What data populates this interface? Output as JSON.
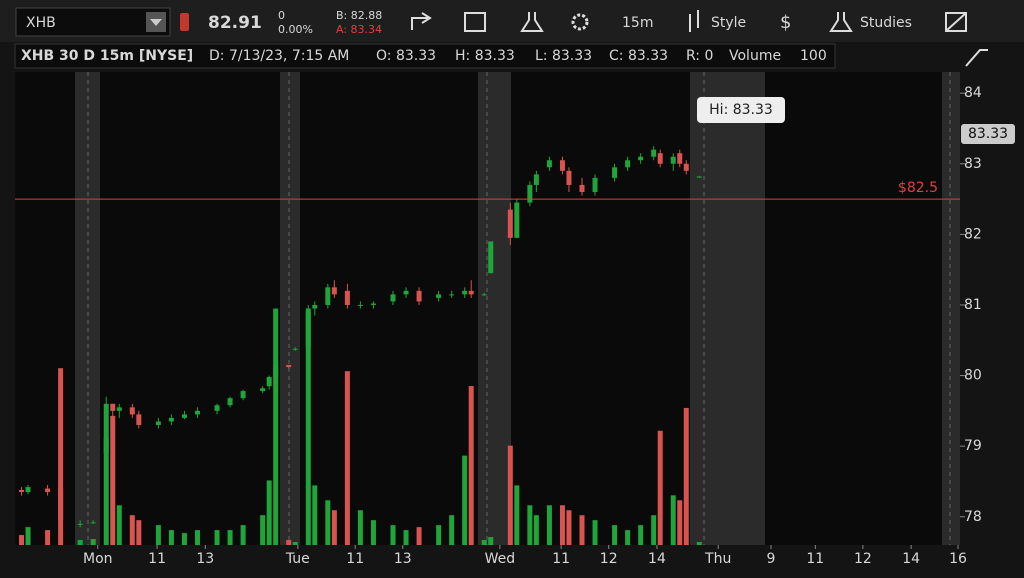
{
  "toolbar": {
    "symbol": "XHB",
    "last": "82.91",
    "change": "0",
    "change_pct": "0.00%",
    "bid": "B: 82.88",
    "ask": "A: 83.34",
    "interval": "15m",
    "style": "Style",
    "studies": "Studies"
  },
  "info_bar": {
    "title": "XHB 30 D 15m [NYSE]",
    "date": "D: 7/13/23, 7:15 AM",
    "open": "O: 83.33",
    "high": "H: 83.33",
    "low": "L: 83.33",
    "close": "C: 83.33",
    "range": "R: 0",
    "volume_label": "Volume",
    "volume": "100"
  },
  "chart_data": {
    "type": "candlestick",
    "x": [
      1,
      2,
      5,
      7,
      10,
      12,
      14,
      15,
      16,
      18,
      19,
      22,
      24,
      26,
      28,
      31,
      33,
      35,
      38,
      39,
      40,
      42,
      43,
      45,
      46,
      48,
      49,
      51,
      53,
      55,
      58,
      60,
      62,
      65,
      67,
      69,
      70,
      72,
      73,
      76,
      77,
      79,
      80,
      82,
      84,
      85,
      87,
      89,
      92,
      94,
      96,
      98,
      99,
      101,
      102,
      103,
      105
    ],
    "open": [
      78.38,
      78.35,
      78.4,
      78.4,
      77.9,
      77.92,
      78.9,
      79.6,
      79.5,
      79.55,
      79.45,
      79.3,
      79.35,
      79.4,
      79.45,
      79.5,
      79.58,
      79.68,
      79.78,
      79.85,
      79.98,
      80.15,
      80.38,
      80.4,
      80.95,
      81.0,
      81.25,
      81.2,
      81.0,
      81.0,
      81.05,
      81.15,
      81.2,
      81.1,
      81.15,
      81.15,
      81.2,
      81.15,
      81.45,
      82.35,
      81.95,
      82.45,
      82.7,
      82.95,
      83.05,
      82.9,
      82.7,
      82.6,
      82.8,
      82.95,
      83.05,
      83.1,
      83.15,
      83.0,
      83.15,
      83.0,
      82.82
    ],
    "high": [
      78.42,
      78.45,
      78.45,
      78.45,
      77.95,
      77.95,
      79.7,
      79.6,
      79.6,
      79.6,
      79.5,
      79.4,
      79.45,
      79.5,
      79.55,
      79.6,
      79.7,
      79.8,
      79.85,
      80.0,
      80.95,
      80.15,
      80.4,
      81.0,
      81.05,
      81.3,
      81.35,
      81.3,
      81.05,
      81.05,
      81.2,
      81.25,
      81.25,
      81.2,
      81.2,
      81.25,
      81.35,
      81.17,
      81.9,
      82.45,
      82.5,
      82.75,
      82.9,
      83.1,
      83.1,
      82.95,
      82.8,
      82.85,
      83.0,
      83.1,
      83.15,
      83.25,
      83.2,
      83.15,
      83.2,
      83.05,
      82.83
    ],
    "low": [
      78.3,
      78.32,
      78.3,
      77.9,
      77.85,
      77.9,
      78.9,
      79.4,
      79.4,
      79.4,
      79.25,
      79.25,
      79.3,
      79.38,
      79.4,
      79.45,
      79.55,
      79.65,
      79.75,
      79.8,
      79.95,
      80.1,
      80.35,
      80.35,
      80.85,
      80.95,
      81.1,
      80.95,
      80.95,
      80.95,
      81.0,
      81.1,
      81.0,
      81.05,
      81.1,
      81.1,
      81.1,
      81.13,
      81.45,
      81.85,
      81.95,
      82.4,
      82.6,
      82.9,
      82.85,
      82.6,
      82.55,
      82.55,
      82.75,
      82.9,
      83.0,
      83.05,
      82.95,
      82.9,
      82.95,
      82.85,
      82.8
    ],
    "close": [
      78.35,
      78.42,
      78.35,
      77.95,
      77.9,
      77.92,
      79.6,
      79.5,
      79.55,
      79.45,
      79.3,
      79.35,
      79.4,
      79.45,
      79.5,
      79.58,
      79.68,
      79.78,
      79.82,
      79.98,
      80.12,
      80.12,
      80.38,
      80.95,
      81.0,
      81.25,
      81.15,
      81.0,
      81.0,
      81.02,
      81.15,
      81.2,
      81.05,
      81.15,
      81.15,
      81.2,
      81.15,
      81.15,
      81.9,
      81.95,
      82.45,
      82.7,
      82.85,
      83.05,
      82.9,
      82.7,
      82.6,
      82.8,
      82.95,
      83.05,
      83.1,
      83.2,
      83.0,
      83.1,
      83.0,
      82.9,
      82.82
    ],
    "volume": [
      10,
      18,
      15,
      178,
      5,
      6,
      108,
      130,
      40,
      30,
      25,
      20,
      15,
      12,
      15,
      15,
      15,
      20,
      30,
      65,
      238,
      5,
      3,
      235,
      60,
      45,
      35,
      175,
      35,
      25,
      20,
      15,
      18,
      20,
      30,
      90,
      160,
      5,
      8,
      100,
      60,
      40,
      30,
      40,
      40,
      35,
      30,
      25,
      20,
      15,
      20,
      30,
      115,
      50,
      45,
      138,
      3
    ],
    "up_color": "#1fa53a",
    "down_color": "#d9534f",
    "xlim": [
      0,
      145
    ],
    "ylim": [
      77.6,
      84.3
    ],
    "volume_lim": [
      0,
      300
    ],
    "xticks": [
      {
        "value": 12.7,
        "label": "Mon"
      },
      {
        "value": 21.8,
        "label": "11"
      },
      {
        "value": 29.2,
        "label": "13"
      },
      {
        "value": 43.4,
        "label": "Tue"
      },
      {
        "value": 52.2,
        "label": "11"
      },
      {
        "value": 59.5,
        "label": "13"
      },
      {
        "value": 74.4,
        "label": "Wed"
      },
      {
        "value": 83.8,
        "label": "11"
      },
      {
        "value": 91.1,
        "label": "12"
      },
      {
        "value": 98.5,
        "label": "14"
      },
      {
        "value": 107.9,
        "label": "Thu"
      },
      {
        "value": 116,
        "label": "9"
      },
      {
        "value": 122.8,
        "label": "11"
      },
      {
        "value": 130.1,
        "label": "12"
      },
      {
        "value": 137.5,
        "label": "14"
      },
      {
        "value": 144.7,
        "label": "16"
      }
    ],
    "yticks": [
      78,
      79,
      80,
      81,
      82,
      83,
      84
    ],
    "price_line": {
      "value": 82.5,
      "label": "$82.5",
      "color": "#e0403a"
    },
    "hi_label": "Hi: 83.33",
    "last_price_label": "83.33"
  }
}
